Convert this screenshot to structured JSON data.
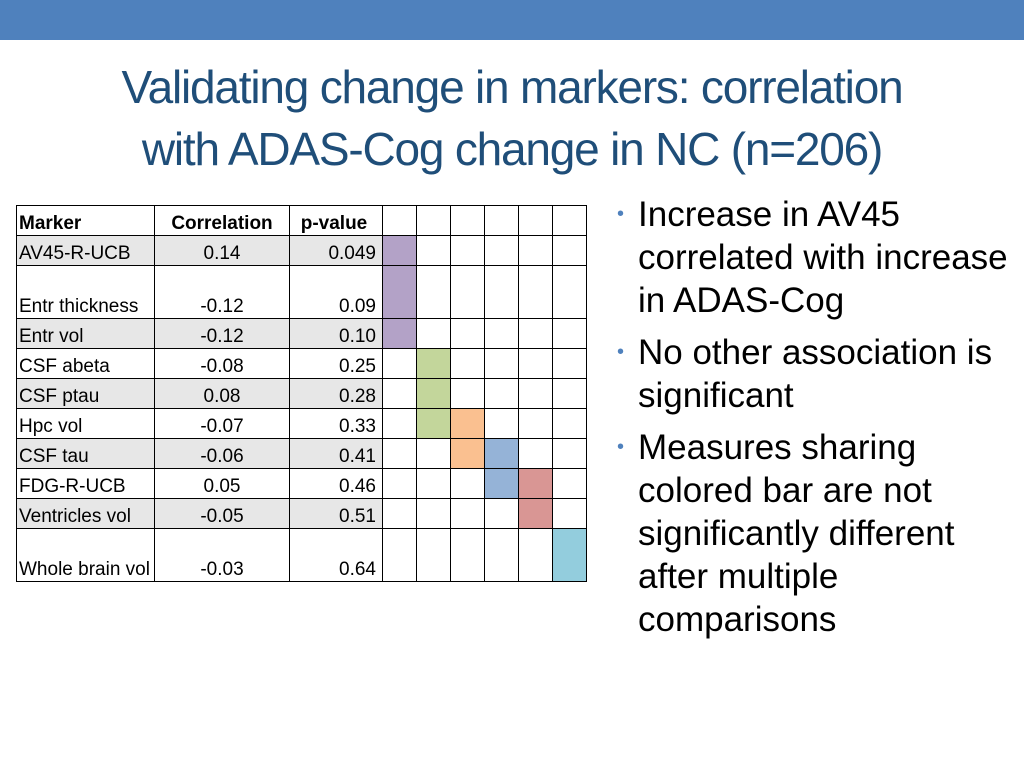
{
  "title": {
    "line1": "Validating change in markers: correlation",
    "line2": "with ADAS-Cog change in NC (n=206)"
  },
  "table": {
    "headers": [
      "Marker",
      "Correlation",
      "p-value"
    ],
    "rows": [
      {
        "marker": "AV45-R-UCB",
        "correlation": "0.14",
        "p": "0.049",
        "bar": 0
      },
      {
        "marker": "Entr thickness",
        "correlation": "-0.12",
        "p": "0.09",
        "bar": 0
      },
      {
        "marker": "Entr vol",
        "correlation": "-0.12",
        "p": "0.10",
        "bar": 0
      },
      {
        "marker": "CSF abeta",
        "correlation": "-0.08",
        "p": "0.25",
        "bar": 1
      },
      {
        "marker": "CSF ptau",
        "correlation": "0.08",
        "p": "0.28",
        "bar": 1
      },
      {
        "marker": "Hpc vol",
        "correlation": "-0.07",
        "p": "0.33",
        "bar": [
          1,
          2
        ]
      },
      {
        "marker": "CSF tau",
        "correlation": "-0.06",
        "p": "0.41",
        "bar": [
          2,
          3
        ]
      },
      {
        "marker": "FDG-R-UCB",
        "correlation": "0.05",
        "p": "0.46",
        "bar": [
          3,
          4
        ]
      },
      {
        "marker": "Ventricles vol",
        "correlation": "-0.05",
        "p": "0.51",
        "bar": 4
      },
      {
        "marker": "Whole brain vol",
        "correlation": "-0.03",
        "p": "0.64",
        "bar": 5
      }
    ],
    "bar_colors": [
      "#b3a2c7",
      "#c3d69b",
      "#fac090",
      "#95b3d7",
      "#d99694",
      "#93cddd"
    ]
  },
  "bullets": [
    "Increase in AV45 correlated with increase in ADAS-Cog",
    "No other association is significant",
    "Measures sharing colored bar are not significantly different after multiple comparisons"
  ]
}
